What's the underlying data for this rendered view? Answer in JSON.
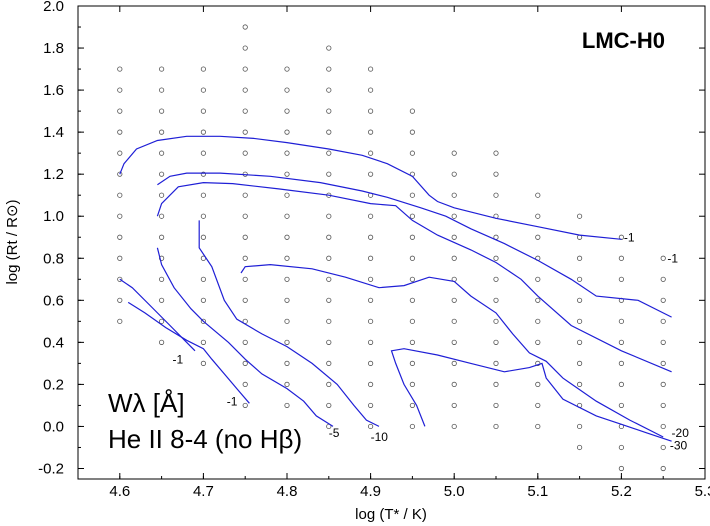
{
  "chart_data": {
    "type": "line",
    "title": "LMC-H0",
    "xlabel": "log (T* / K)",
    "ylabel": "log (Rt / R⊙)",
    "xlim": [
      4.55,
      5.3
    ],
    "ylim": [
      -0.25,
      2.0
    ],
    "x_ticks": [
      "4.6",
      "4.7",
      "4.8",
      "4.9",
      "5.0",
      "5.1",
      "5.2",
      "5.3"
    ],
    "y_ticks": [
      "-0.2",
      "0.0",
      "0.2",
      "0.4",
      "0.6",
      "0.8",
      "1.0",
      "1.2",
      "1.4",
      "1.6",
      "1.8",
      "2.0"
    ],
    "legend_line1": "Wλ [Å]",
    "legend_line2": "He II 8-4 (no Hβ)",
    "grid_models": [
      {
        "x": 4.6,
        "y": [
          0.5,
          0.6,
          0.7,
          0.8,
          0.9,
          1.0,
          1.1,
          1.2,
          1.3,
          1.4,
          1.5,
          1.6,
          1.7
        ]
      },
      {
        "x": 4.65,
        "y": [
          0.4,
          0.5,
          0.6,
          0.7,
          0.8,
          0.9,
          1.0,
          1.1,
          1.2,
          1.3,
          1.4,
          1.5,
          1.6,
          1.7
        ]
      },
      {
        "x": 4.7,
        "y": [
          0.3,
          0.4,
          0.5,
          0.6,
          0.7,
          0.8,
          0.9,
          1.0,
          1.1,
          1.2,
          1.3,
          1.4,
          1.5,
          1.6,
          1.7
        ]
      },
      {
        "x": 4.75,
        "y": [
          0.1,
          0.2,
          0.3,
          0.4,
          0.5,
          0.6,
          0.7,
          0.8,
          0.9,
          1.0,
          1.1,
          1.2,
          1.3,
          1.4,
          1.5,
          1.6,
          1.7,
          1.8,
          1.9
        ]
      },
      {
        "x": 4.8,
        "y": [
          0.1,
          0.2,
          0.3,
          0.4,
          0.5,
          0.6,
          0.7,
          0.8,
          0.9,
          1.0,
          1.1,
          1.2,
          1.3,
          1.4,
          1.5,
          1.6,
          1.7
        ]
      },
      {
        "x": 4.85,
        "y": [
          0.0,
          0.1,
          0.2,
          0.3,
          0.4,
          0.5,
          0.6,
          0.7,
          0.8,
          0.9,
          1.0,
          1.1,
          1.2,
          1.3,
          1.4,
          1.5,
          1.6,
          1.7,
          1.8
        ]
      },
      {
        "x": 4.9,
        "y": [
          0.0,
          0.1,
          0.2,
          0.3,
          0.4,
          0.5,
          0.6,
          0.7,
          0.8,
          0.9,
          1.0,
          1.1,
          1.2,
          1.3,
          1.4,
          1.5,
          1.6,
          1.7
        ]
      },
      {
        "x": 4.95,
        "y": [
          0.0,
          0.1,
          0.2,
          0.3,
          0.4,
          0.5,
          0.6,
          0.7,
          0.8,
          0.9,
          1.0,
          1.1,
          1.2,
          1.3,
          1.4,
          1.5
        ]
      },
      {
        "x": 5.0,
        "y": [
          0.0,
          0.1,
          0.2,
          0.3,
          0.4,
          0.5,
          0.6,
          0.7,
          0.8,
          0.9,
          1.0,
          1.1,
          1.2,
          1.3
        ]
      },
      {
        "x": 5.05,
        "y": [
          0.0,
          0.1,
          0.2,
          0.3,
          0.4,
          0.5,
          0.6,
          0.7,
          0.8,
          0.9,
          1.0,
          1.1,
          1.2,
          1.3
        ]
      },
      {
        "x": 5.1,
        "y": [
          0.0,
          0.1,
          0.2,
          0.3,
          0.4,
          0.5,
          0.6,
          0.7,
          0.8,
          0.9,
          1.0,
          1.1
        ]
      },
      {
        "x": 5.15,
        "y": [
          -0.1,
          0.0,
          0.1,
          0.2,
          0.3,
          0.4,
          0.5,
          0.6,
          0.7,
          0.8,
          0.9,
          1.0
        ]
      },
      {
        "x": 5.2,
        "y": [
          -0.2,
          -0.1,
          0.0,
          0.1,
          0.2,
          0.3,
          0.4,
          0.5,
          0.6,
          0.7,
          0.8,
          0.9
        ]
      },
      {
        "x": 5.25,
        "y": [
          -0.2,
          -0.1,
          0.0,
          0.1,
          0.2,
          0.3,
          0.4,
          0.5,
          0.6,
          0.7,
          0.8
        ]
      }
    ],
    "series": [
      {
        "label": "-1",
        "points": [
          [
            4.6,
            1.2
          ],
          [
            4.605,
            1.25
          ],
          [
            4.62,
            1.32
          ],
          [
            4.645,
            1.36
          ],
          [
            4.68,
            1.38
          ],
          [
            4.72,
            1.38
          ],
          [
            4.76,
            1.37
          ],
          [
            4.8,
            1.35
          ],
          [
            4.85,
            1.32
          ],
          [
            4.89,
            1.29
          ],
          [
            4.92,
            1.25
          ],
          [
            4.95,
            1.19
          ],
          [
            4.97,
            1.1
          ],
          [
            4.98,
            1.07
          ],
          [
            5.0,
            1.04
          ],
          [
            5.05,
            0.99
          ],
          [
            5.1,
            0.95
          ],
          [
            5.15,
            0.91
          ],
          [
            5.2,
            0.89
          ]
        ]
      },
      {
        "label": "-1",
        "points": [
          [
            4.645,
            1.15
          ],
          [
            4.66,
            1.19
          ],
          [
            4.68,
            1.205
          ],
          [
            4.72,
            1.205
          ],
          [
            4.78,
            1.19
          ],
          [
            4.84,
            1.16
          ],
          [
            4.89,
            1.12
          ],
          [
            4.92,
            1.09
          ],
          [
            4.96,
            1.04
          ],
          [
            4.99,
            1.0
          ],
          [
            5.02,
            0.94
          ],
          [
            5.06,
            0.87
          ],
          [
            5.1,
            0.79
          ],
          [
            5.14,
            0.7
          ],
          [
            5.17,
            0.62
          ],
          [
            5.22,
            0.6
          ],
          [
            5.26,
            0.52
          ]
        ]
      },
      {
        "label": "-1",
        "points": [
          [
            4.6,
            0.7
          ],
          [
            4.615,
            0.66
          ],
          [
            4.635,
            0.58
          ],
          [
            4.66,
            0.48
          ],
          [
            4.675,
            0.42
          ],
          [
            4.69,
            0.36
          ]
        ]
      },
      {
        "label": "-1",
        "points": [
          [
            4.645,
            1.0
          ],
          [
            4.65,
            1.06
          ],
          [
            4.67,
            1.14
          ],
          [
            4.7,
            1.16
          ],
          [
            4.735,
            1.155
          ],
          [
            4.79,
            1.13
          ],
          [
            4.85,
            1.1
          ],
          [
            4.9,
            1.06
          ],
          [
            4.93,
            1.05
          ],
          [
            4.95,
            0.98
          ],
          [
            4.98,
            0.91
          ],
          [
            5.02,
            0.84
          ],
          [
            5.05,
            0.78
          ],
          [
            5.08,
            0.7
          ],
          [
            5.1,
            0.62
          ],
          [
            5.14,
            0.48
          ],
          [
            5.2,
            0.36
          ],
          [
            5.26,
            0.26
          ]
        ]
      },
      {
        "label": "-1",
        "points": [
          [
            4.61,
            0.59
          ],
          [
            4.63,
            0.54
          ],
          [
            4.655,
            0.47
          ],
          [
            4.68,
            0.41
          ],
          [
            4.7,
            0.37
          ],
          [
            4.71,
            0.32
          ],
          [
            4.725,
            0.25
          ],
          [
            4.74,
            0.18
          ],
          [
            4.755,
            0.11
          ]
        ]
      },
      {
        "label": "-5",
        "points": [
          [
            4.645,
            0.85
          ],
          [
            4.65,
            0.77
          ],
          [
            4.665,
            0.66
          ],
          [
            4.685,
            0.56
          ],
          [
            4.7,
            0.5
          ],
          [
            4.73,
            0.4
          ],
          [
            4.75,
            0.32
          ],
          [
            4.77,
            0.25
          ],
          [
            4.8,
            0.18
          ],
          [
            4.82,
            0.12
          ],
          [
            4.835,
            0.05
          ],
          [
            4.855,
            0.0
          ]
        ]
      },
      {
        "label": "-10",
        "points": [
          [
            4.695,
            0.98
          ],
          [
            4.695,
            0.85
          ],
          [
            4.71,
            0.76
          ],
          [
            4.725,
            0.6
          ],
          [
            4.74,
            0.51
          ],
          [
            4.77,
            0.44
          ],
          [
            4.8,
            0.38
          ],
          [
            4.83,
            0.3
          ],
          [
            4.86,
            0.2
          ],
          [
            4.88,
            0.1
          ],
          [
            4.895,
            0.03
          ],
          [
            4.91,
            0.0
          ]
        ]
      },
      {
        "label": "-10",
        "points": [
          [
            4.745,
            0.73
          ],
          [
            4.75,
            0.76
          ],
          [
            4.78,
            0.77
          ],
          [
            4.83,
            0.75
          ],
          [
            4.87,
            0.71
          ],
          [
            4.91,
            0.66
          ],
          [
            4.94,
            0.67
          ],
          [
            4.97,
            0.71
          ],
          [
            5.0,
            0.69
          ],
          [
            5.02,
            0.62
          ],
          [
            5.05,
            0.54
          ],
          [
            5.07,
            0.44
          ],
          [
            5.09,
            0.35
          ],
          [
            5.11,
            0.31
          ],
          [
            5.13,
            0.23
          ],
          [
            5.17,
            0.12
          ],
          [
            5.21,
            0.03
          ],
          [
            5.25,
            -0.05
          ]
        ]
      },
      {
        "label": "-20",
        "points": [
          [
            4.965,
            0.0
          ],
          [
            4.955,
            0.1
          ],
          [
            4.94,
            0.2
          ],
          [
            4.93,
            0.3
          ],
          [
            4.925,
            0.36
          ],
          [
            4.94,
            0.37
          ],
          [
            4.98,
            0.34
          ],
          [
            5.02,
            0.3
          ],
          [
            5.06,
            0.26
          ],
          [
            5.09,
            0.28
          ],
          [
            5.105,
            0.3
          ],
          [
            5.11,
            0.23
          ],
          [
            5.13,
            0.13
          ],
          [
            5.17,
            0.05
          ],
          [
            5.2,
            0.01
          ],
          [
            5.23,
            -0.03
          ],
          [
            5.26,
            -0.07
          ]
        ]
      }
    ],
    "contour_labels": [
      {
        "text": "-1",
        "x": 5.203,
        "y": 0.88
      },
      {
        "text": "-1",
        "x": 5.255,
        "y": 0.78
      },
      {
        "text": "-1",
        "x": 4.663,
        "y": 0.3
      },
      {
        "text": "-1",
        "x": 4.728,
        "y": 0.1
      },
      {
        "text": "-5",
        "x": 4.85,
        "y": -0.05
      },
      {
        "text": "-10",
        "x": 4.9,
        "y": -0.07
      },
      {
        "text": "-20",
        "x": 5.26,
        "y": -0.05
      },
      {
        "text": "-30",
        "x": 5.258,
        "y": -0.11
      }
    ]
  }
}
